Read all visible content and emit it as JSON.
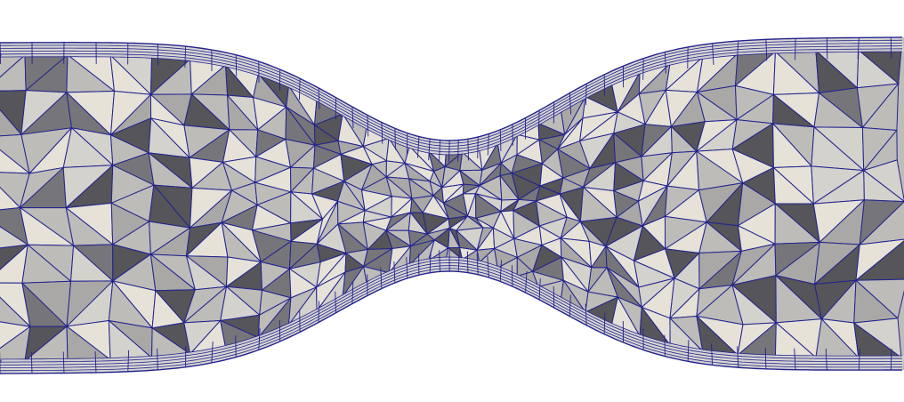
{
  "scene": {
    "subject": "mesh-render",
    "colors": {
      "background": "#ffffff",
      "edge": "#23238f",
      "face_light": "#e6e2d8",
      "face_mid": "#bdbcb9",
      "face_dark": "#76767a",
      "face_darkest": "#55555a"
    }
  }
}
